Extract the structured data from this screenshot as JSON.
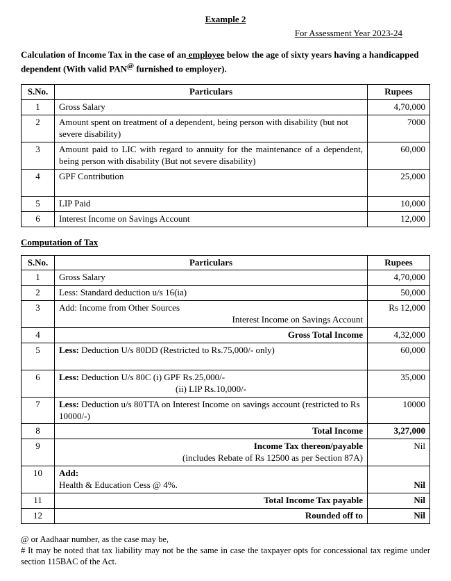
{
  "header": {
    "example_title": "Example 2",
    "assessment_year": "For Assessment Year 2023-24",
    "intro_before_underline": "Calculation of Income Tax in the case of an",
    "intro_underline": " employee",
    "intro_after_underline": " below the age of sixty years having a handicapped dependent (With valid PAN",
    "intro_sup": "@",
    "intro_tail": "  furnished to employer)."
  },
  "table1": {
    "headers": {
      "sno": "S.No.",
      "particulars": "Particulars",
      "rupees": "Rupees"
    },
    "rows": [
      {
        "sno": "1",
        "particulars": "Gross Salary",
        "rupees": "4,70,000"
      },
      {
        "sno": "2",
        "particulars": "Amount spent on treatment of a dependent, being person with disability (but not severe disability)",
        "rupees": "7000"
      },
      {
        "sno": "3",
        "particulars": "Amount paid to LIC with regard to annuity for the maintenance of a dependent, being person with disability (But not severe disability)",
        "rupees": "60,000",
        "justify": true
      },
      {
        "sno": "4",
        "particulars": "GPF Contribution",
        "rupees": "25,000",
        "tall": true
      },
      {
        "sno": "5",
        "particulars": "LIP Paid",
        "rupees": "10,000"
      },
      {
        "sno": "6",
        "particulars": "Interest Income on Savings Account",
        "rupees": "12,000"
      }
    ]
  },
  "section2_heading": "Computation of Tax",
  "table2": {
    "headers": {
      "sno": "S.No.",
      "particulars": "Particulars",
      "rupees": "Rupees"
    },
    "rows": [
      {
        "sno": "1",
        "html": "Gross Salary",
        "rupees": "4,70,000"
      },
      {
        "sno": "2",
        "html": "Less: Standard deduction u/s 16(ia)",
        "rupees": "50,000"
      },
      {
        "sno": "3",
        "html": "Add: Income from Other Sources",
        "sub_right": "Interest Income on Savings Account",
        "rupees": "Rs 12,000"
      },
      {
        "sno": "4",
        "right_bold": "Gross Total Income",
        "rupees": "4,32,000"
      },
      {
        "sno": "5",
        "bold_prefix": "Less:",
        "rest": " Deduction U/s 80DD (Restricted to Rs.75,000/- only)",
        "rupees": "60,000",
        "tall": true
      },
      {
        "sno": "6",
        "bold_prefix": "Less:",
        "rest": " Deduction U/s 80C (i) GPF  Rs.25,000/-",
        "line2": "(ii) LIP  Rs.10,000/-",
        "indent2": 168,
        "rupees": "35,000"
      },
      {
        "sno": "7",
        "bold_prefix": "Less:",
        "rest": " Deduction u/s 80TTA on Interest Income on savings account (restricted to Rs 10000/-)",
        "rupees": "10000"
      },
      {
        "sno": "8",
        "right_bold": "Total Income",
        "rupees": "3,27,000",
        "rup_bold": true
      },
      {
        "sno": "9",
        "right_bold": "Income Tax thereon/payable",
        "sub_right_plain": "(includes Rebate of Rs 12500 as per Section 87A)",
        "rupees": "Nil"
      },
      {
        "sno": "10",
        "bold_only": "Add:",
        "line2_plain": "Health & Education Cess @ 4%.",
        "rupees": "Nil",
        "rup_bold": true,
        "rup_valign_bottom": true
      },
      {
        "sno": "11",
        "right_bold": "Total Income Tax payable",
        "rupees": "Nil",
        "rup_bold": true
      },
      {
        "sno": "12",
        "right_bold": "Rounded off to",
        "rupees": "Nil",
        "rup_bold": true
      }
    ]
  },
  "footnotes": {
    "line1": "@ or Aadhaar number, as the case may be,",
    "line2": "# It may be noted that tax liability may not be the same in case the taxpayer opts for concessional tax regime under section 115BAC of the Act."
  }
}
